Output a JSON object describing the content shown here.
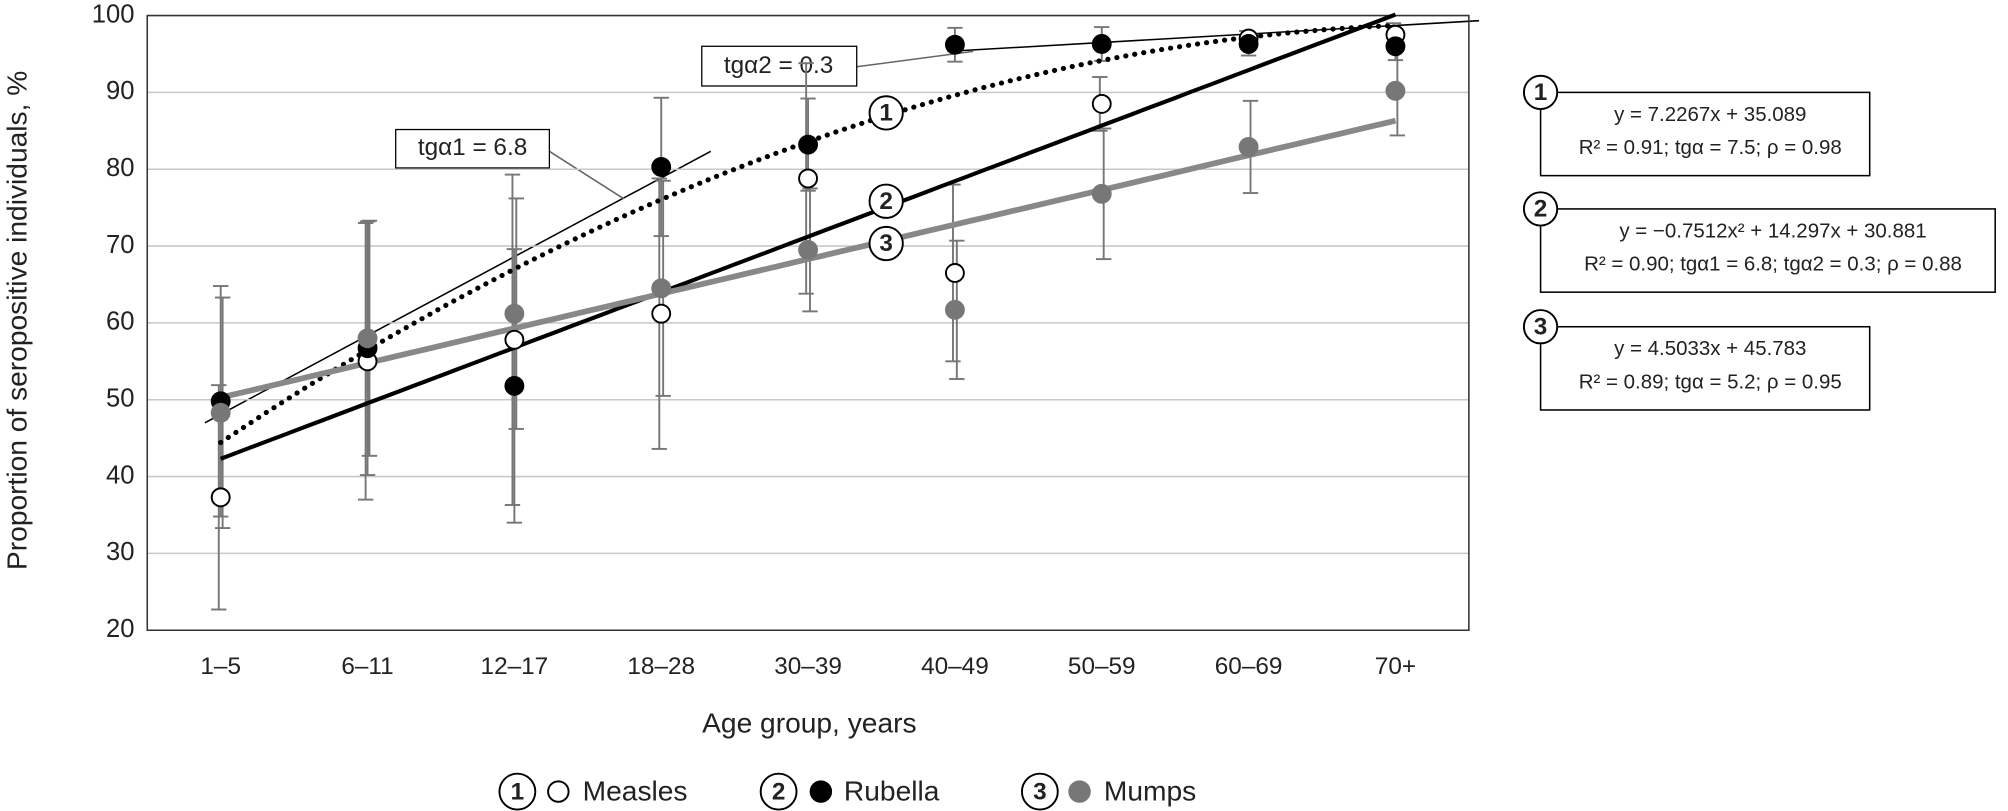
{
  "chart_data": {
    "type": "scatter",
    "x_label": "Age group, years",
    "y_label": "Proportion of seropositive individuals, %",
    "categories": [
      "1–5",
      "6–11",
      "12–17",
      "18–28",
      "30–39",
      "40–49",
      "50–59",
      "60–69",
      "70+"
    ],
    "ylim": [
      20,
      100
    ],
    "yticks": [
      20,
      30,
      40,
      50,
      60,
      70,
      80,
      90,
      100
    ],
    "grid": true,
    "series": [
      {
        "name": "Measles",
        "marker_label": "1",
        "color": "#ffffff",
        "stroke": "#000000",
        "values": [
          37.3,
          55,
          57.8,
          61.2,
          78.8,
          66.5,
          88.5,
          97,
          97.5
        ],
        "errors": [
          14.6,
          18,
          21.5,
          17.6,
          15,
          11.5,
          3.5,
          1,
          1.5
        ],
        "trend": {
          "style": "solid",
          "color": "#000000",
          "coefficients": [
            7.2267,
            35.089
          ],
          "equation": "y = 7.2267x + 35.089",
          "stats": "R² = 0.91; tgα = 7.5; ρ = 0.98"
        }
      },
      {
        "name": "Rubella",
        "marker_label": "2",
        "color": "#000000",
        "stroke": "#000000",
        "values": [
          49.8,
          56.7,
          51.8,
          80.3,
          83.2,
          96.2,
          96.3,
          96.3,
          96
        ],
        "errors": [
          15,
          16.5,
          17.8,
          9,
          6,
          2.2,
          2.2,
          1.5,
          1.8
        ],
        "trend": {
          "style": "dotted",
          "color": "#000000",
          "coefficients": [
            -0.7512,
            14.297,
            30.881
          ],
          "equation": "y = −0.7512x² + 14.297x + 30.881",
          "stats": "R² = 0.90; tgα1 = 6.8; tgα2 = 0.3; ρ = 0.88"
        }
      },
      {
        "name": "Mumps",
        "marker_label": "3",
        "color": "#777777",
        "stroke": "#777777",
        "values": [
          48.3,
          58,
          61.2,
          64.5,
          69.5,
          61.7,
          76.8,
          82.9,
          90.2
        ],
        "errors": [
          15,
          15.3,
          15,
          14,
          8,
          9,
          8.5,
          6,
          5.8
        ],
        "trend": {
          "style": "solid",
          "color": "#888888",
          "coefficients": [
            4.5033,
            45.783
          ],
          "equation": "y = 4.5033x + 45.783",
          "stats": "R² = 0.89; tgα = 5.2; ρ = 0.95"
        }
      }
    ],
    "annotations": [
      "tgα1 = 6.8",
      "tgα2 = 0.3"
    ]
  }
}
